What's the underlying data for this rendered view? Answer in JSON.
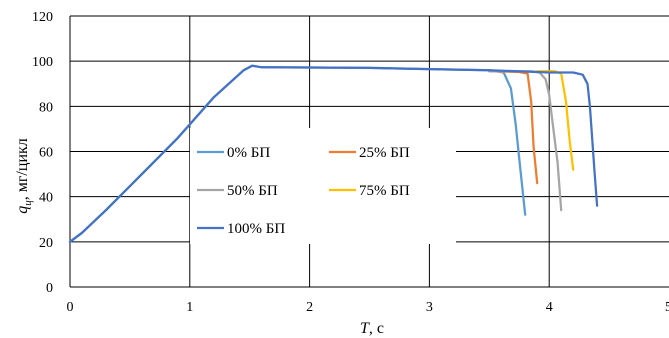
{
  "chart_data": {
    "type": "line",
    "xlabel": "T",
    "xlabel_unit": ", с",
    "ylabel_var": "q",
    "ylabel_sub": "ц",
    "ylabel_unit": ", мг/цикл",
    "xlim": [
      0,
      5
    ],
    "ylim": [
      0,
      120
    ],
    "xticks": [
      "0",
      "1",
      "2",
      "3",
      "4",
      "5"
    ],
    "yticks": [
      "0",
      "20",
      "40",
      "60",
      "80",
      "100",
      "120"
    ],
    "grid": true,
    "legend_position": "center-left",
    "series": [
      {
        "name": "0% БП",
        "color": "#5B9BD5",
        "x": [
          0,
          0.1,
          0.3,
          0.6,
          0.9,
          1.2,
          1.45,
          1.52,
          1.6,
          2.0,
          2.5,
          3.0,
          3.5,
          3.62,
          3.68,
          3.72,
          3.76,
          3.8
        ],
        "y": [
          20,
          24,
          34,
          50,
          66,
          84,
          96,
          98,
          97.3,
          97.2,
          97,
          96.5,
          96,
          95,
          88,
          72,
          52,
          32
        ]
      },
      {
        "name": "25% БП",
        "color": "#ED7D31",
        "x": [
          3.5,
          3.75,
          3.82,
          3.85,
          3.87,
          3.9
        ],
        "y": [
          95.5,
          95.2,
          94.5,
          82,
          62,
          46
        ]
      },
      {
        "name": "50% БП",
        "color": "#A5A5A5",
        "x": [
          3.5,
          3.85,
          3.92,
          3.97,
          4.0,
          4.03,
          4.07,
          4.1
        ],
        "y": [
          95.5,
          95.5,
          95,
          92,
          85,
          72,
          55,
          34
        ]
      },
      {
        "name": "75% БП",
        "color": "#FFC000",
        "x": [
          3.9,
          4.05,
          4.1,
          4.14,
          4.17,
          4.2
        ],
        "y": [
          95.5,
          95.5,
          94.5,
          82,
          65,
          52
        ]
      },
      {
        "name": "100% БП",
        "color": "#4472C4",
        "x": [
          0,
          0.1,
          0.3,
          0.6,
          0.9,
          1.2,
          1.45,
          1.52,
          1.6,
          2.0,
          2.5,
          3.0,
          3.5,
          4.0,
          4.2,
          4.28,
          4.32,
          4.34,
          4.36,
          4.38,
          4.4
        ],
        "y": [
          20,
          24,
          34,
          50,
          66,
          84,
          96,
          98,
          97.3,
          97.2,
          97,
          96.5,
          96,
          95,
          95,
          94,
          90,
          80,
          65,
          50,
          36
        ]
      }
    ]
  }
}
